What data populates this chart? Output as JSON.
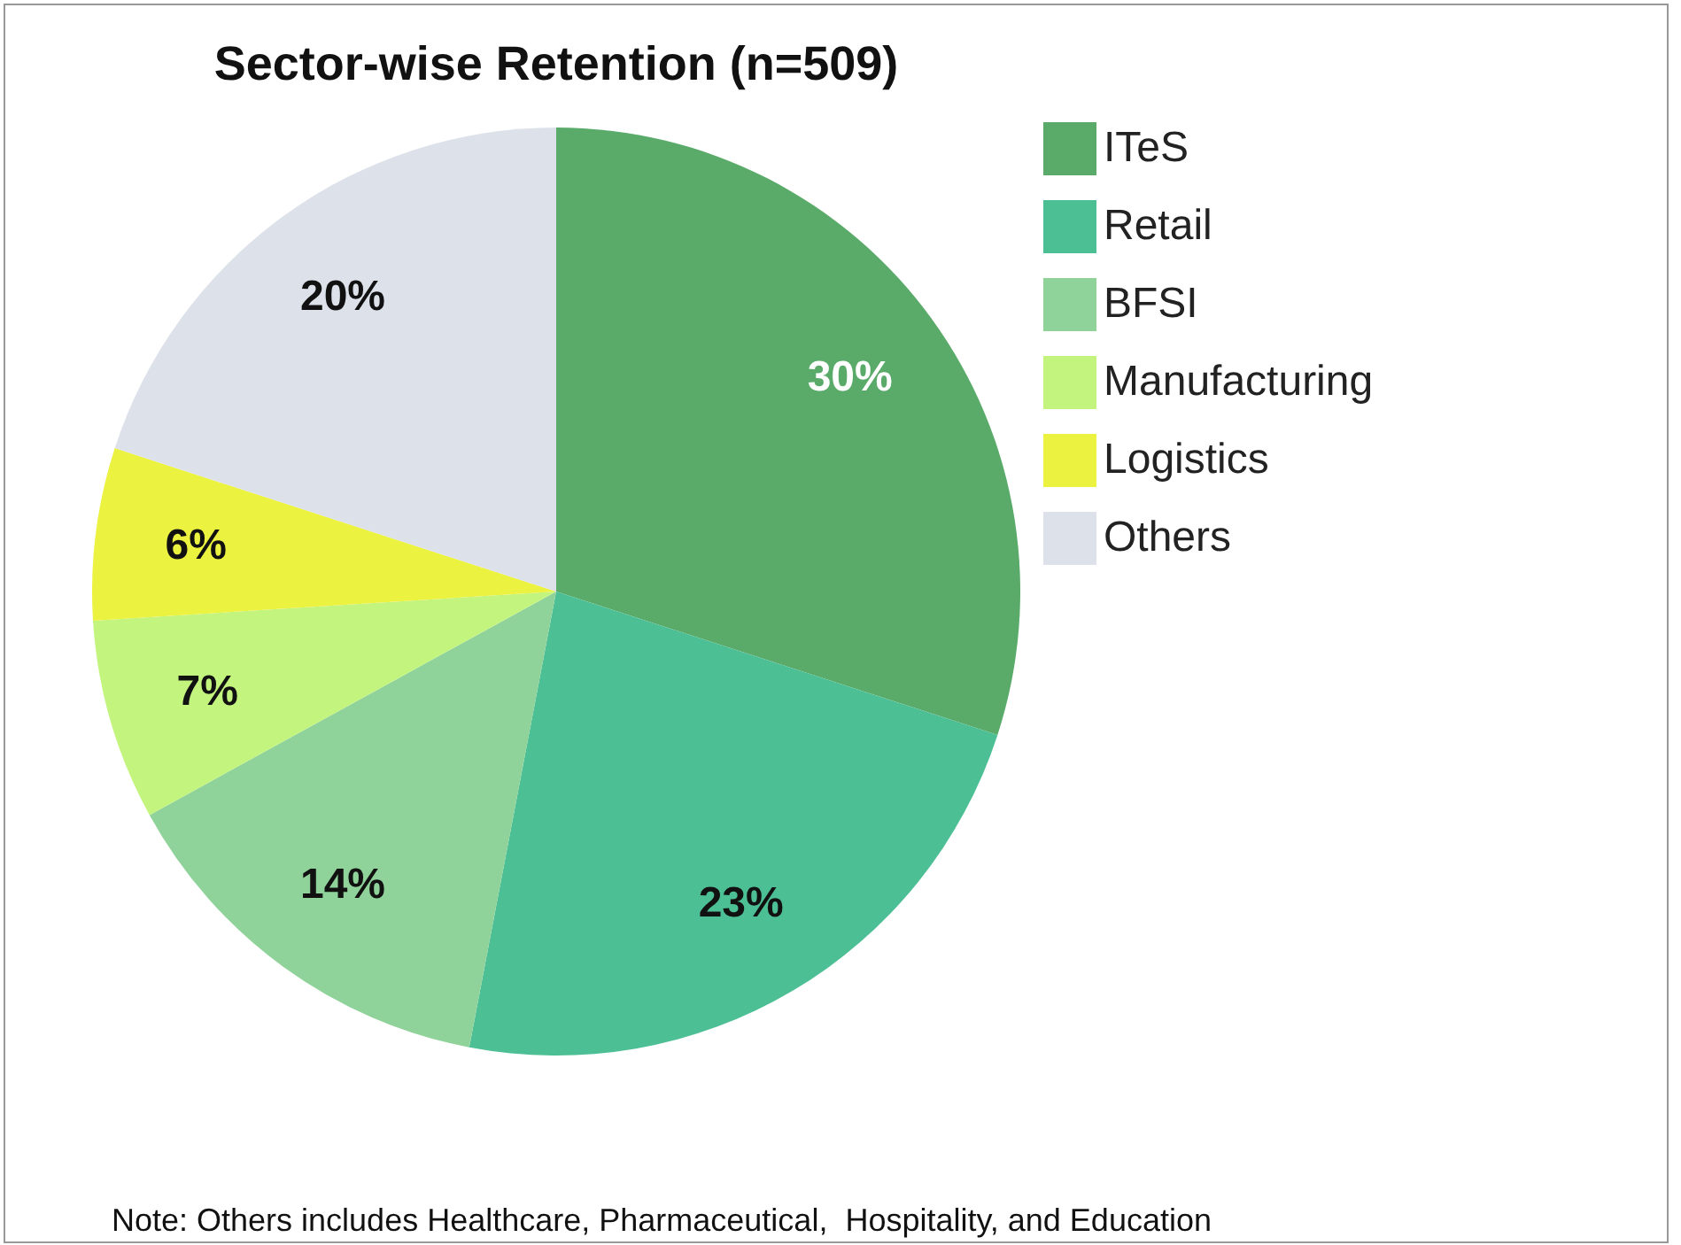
{
  "chart_data": {
    "type": "pie",
    "title": "Sector-wise Retention (n=509)",
    "categories": [
      "ITeS",
      "Retail",
      "BFSI",
      "Manufacturing",
      "Logistics",
      "Others"
    ],
    "values": [
      30,
      23,
      14,
      7,
      6,
      20
    ],
    "colors": [
      "#5aab6a",
      "#4dbf94",
      "#8fd39a",
      "#c2f47e",
      "#ebf23f",
      "#dde2ea"
    ],
    "value_labels": [
      "30%",
      "23%",
      "14%",
      "7%",
      "6%",
      "20%"
    ],
    "legend": "right",
    "annotations": [
      "Note: Others includes Healthcare, Pharmaceutical,  Hospitality, and Education"
    ]
  }
}
